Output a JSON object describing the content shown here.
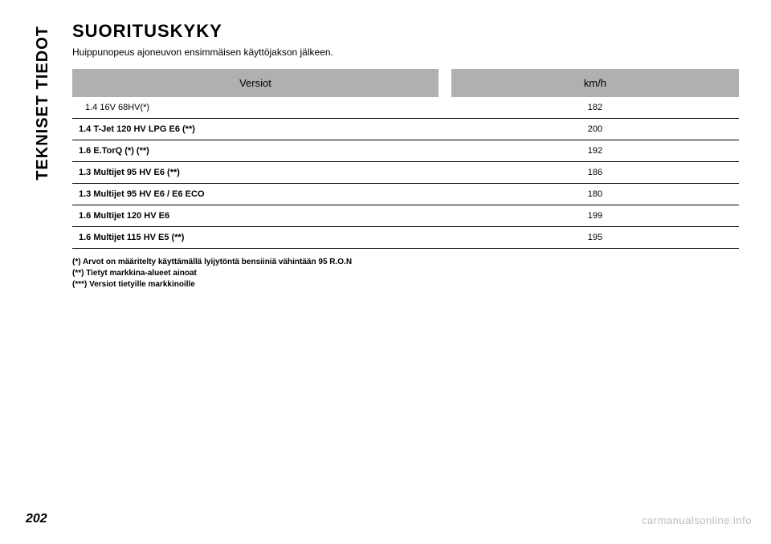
{
  "sidebar": {
    "label": "TEKNISET TIEDOT"
  },
  "page": {
    "title": "SUORITUSKYKY",
    "subtitle": "Huippunopeus ajoneuvon ensimmäisen käyttöjakson jälkeen.",
    "number": "202",
    "watermark": "carmanualsonline.info"
  },
  "table": {
    "headers": {
      "col1": "Versiot",
      "col2": "km/h"
    },
    "rows": [
      {
        "label": "1.4 16V 68HV(*)",
        "value": "182"
      },
      {
        "label": "1.4 T-Jet 120 HV LPG E6 (**)",
        "value": "200"
      },
      {
        "label": "1.6 E.TorQ (*) (**)",
        "value": "192"
      },
      {
        "label": "1.3 Multijet 95 HV E6 (**)",
        "value": "186"
      },
      {
        "label": "1.3 Multijet 95 HV E6 / E6 ECO",
        "value": "180"
      },
      {
        "label": "1.6 Multijet 120 HV E6",
        "value": "199"
      },
      {
        "label": "1.6 Multijet 115 HV E5 (**)",
        "value": "195"
      }
    ]
  },
  "footnotes": {
    "n1": "(*) Arvot on määritelty käyttämällä lyijytöntä bensiiniä vähintään 95 R.O.N",
    "n2": "(**) Tietyt markkina-alueet ainoat",
    "n3": "(***) Versiot tietyille markkinoille"
  }
}
